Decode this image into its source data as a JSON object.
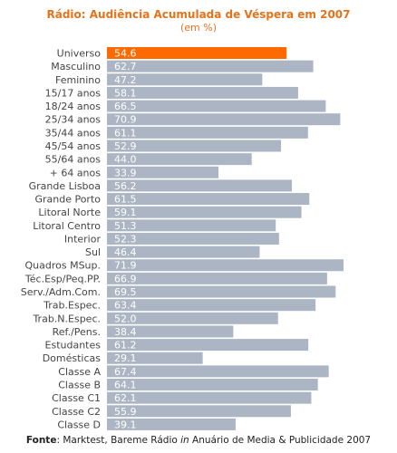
{
  "chart_data": {
    "type": "bar",
    "orientation": "horizontal",
    "title": "Rádio: Audiência Acumulada de Véspera em 2007",
    "subtitle": "(em %)",
    "categories": [
      "Universo",
      "Masculino",
      "Feminino",
      "15/17 anos",
      "18/24 anos",
      "25/34 anos",
      "35/44 anos",
      "45/54 anos",
      "55/64 anos",
      "+ 64 anos",
      "Grande Lisboa",
      "Grande Porto",
      "Litoral Norte",
      "Litoral Centro",
      "Interior",
      "Sul",
      "Quadros MSup.",
      "Téc.Esp/Peq.PP.",
      "Serv./Adm.Com.",
      "Trab.Espec.",
      "Trab.N.Espec.",
      "Ref./Pens.",
      "Estudantes",
      "Domésticas",
      "Classe A",
      "Classe B",
      "Classe C1",
      "Classe C2",
      "Classe D"
    ],
    "values": [
      54.6,
      62.7,
      47.2,
      58.1,
      66.5,
      70.9,
      61.1,
      52.9,
      44.0,
      33.9,
      56.2,
      61.5,
      59.1,
      51.3,
      52.3,
      46.4,
      71.9,
      66.9,
      69.5,
      63.4,
      52.0,
      38.4,
      61.2,
      29.1,
      67.4,
      64.1,
      62.1,
      55.9,
      39.1
    ],
    "value_labels": [
      "54.6",
      "62.7",
      "47.2",
      "58.1",
      "66.5",
      "70.9",
      "61.1",
      "52.9",
      "44.0",
      "33.9",
      "56.2",
      "61.5",
      "59.1",
      "51.3",
      "52.3",
      "46.4",
      "71.9",
      "66.9",
      "69.5",
      "63.4",
      "52.0",
      "38.4",
      "61.2",
      "29.1",
      "67.4",
      "64.1",
      "62.1",
      "55.9",
      "39.1"
    ],
    "highlight_index": 0,
    "colors": {
      "highlight": "#ff6a00",
      "bar": "#acb5c3",
      "title": "#e5731b"
    },
    "xlim": [
      0,
      80
    ],
    "grid": false,
    "legend": "none"
  },
  "source": {
    "prefix": "Fonte",
    "sep": ": ",
    "text": "Marktest, Bareme Rádio ",
    "italic": "in",
    "text2": " Anuário de Media & Publicidade 2007"
  }
}
